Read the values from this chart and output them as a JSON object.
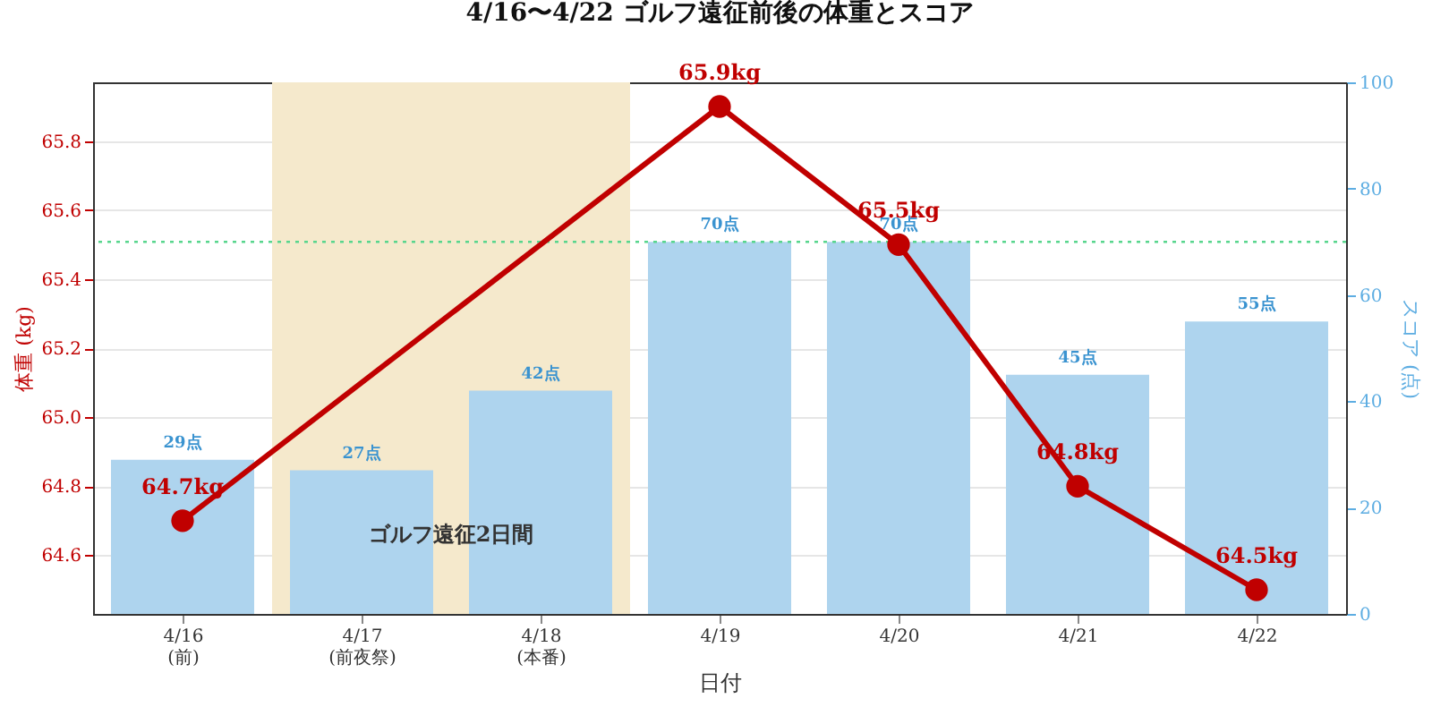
{
  "chart_data": {
    "type": "bar",
    "title": "4/16〜4/22 ゴルフ遠征前後の体重とスコア",
    "xlabel": "日付",
    "ylabel": "体重 (kg)",
    "y2label": "スコア (点)",
    "categories": [
      "4/16\n(前)",
      "4/17\n(前夜祭)",
      "4/18\n(本番)",
      "4/19",
      "4/20",
      "4/21",
      "4/22"
    ],
    "series": [
      {
        "axis": "y2",
        "color": "#aed4ee",
        "values": [
          29,
          27,
          42,
          70,
          70,
          45,
          55
        ],
        "value_labels": [
          "29点",
          "27点",
          "42点",
          "70点",
          "70点",
          "45点",
          "55点"
        ]
      },
      {
        "type": "line",
        "axis": "y",
        "color": "#c00000",
        "values": [
          64.7,
          null,
          null,
          65.9,
          65.5,
          64.8,
          64.5
        ],
        "value_labels": [
          "64.7kg",
          null,
          null,
          "65.9kg",
          "65.5kg",
          "64.8kg",
          "64.5kg"
        ]
      }
    ],
    "ylim": [
      64.43,
      65.97
    ],
    "yticks": [
      64.6,
      64.8,
      {
        "value": 65,
        "label": "65.0"
      },
      65.2,
      65.4,
      65.6,
      65.8
    ],
    "y2lim": [
      0,
      100
    ],
    "y2ticks": [
      0,
      20,
      40,
      60,
      80,
      100
    ],
    "ref_lines": [
      {
        "axis": "y2",
        "value": 70,
        "color": "#58d68d",
        "line_style": "dotted"
      }
    ],
    "bands": [
      {
        "axis": "x",
        "from": "4/17\n(前夜祭)",
        "to": "4/18\n(本番)",
        "color": "#f5e9cc"
      }
    ],
    "annotations": [
      "ゴルフ遠征2日間"
    ],
    "grid": "y",
    "marker": "circle"
  }
}
